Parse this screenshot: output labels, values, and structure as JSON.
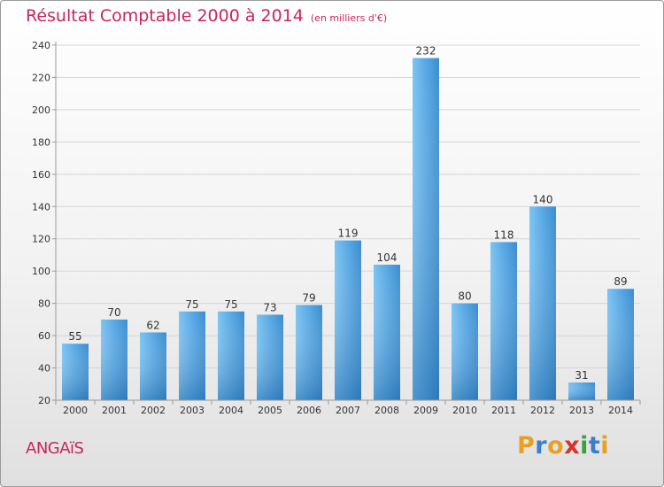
{
  "title": {
    "main": "Résultat Comptable 2000 à 2014",
    "sub": "(en milliers d'€)"
  },
  "commune": "ANGAïS",
  "logo": {
    "text": "Proxiti",
    "letters": [
      {
        "char": "P",
        "color": "#e8a020"
      },
      {
        "char": "r",
        "color": "#3a7fc8"
      },
      {
        "char": "o",
        "color": "#e8a020"
      },
      {
        "char": "x",
        "color": "#d8332a"
      },
      {
        "char": "i",
        "color": "#3aa040"
      },
      {
        "char": "t",
        "color": "#3a7fc8"
      },
      {
        "char": "i",
        "color": "#e8a020"
      }
    ]
  },
  "colors": {
    "title": "#c8245c",
    "bar_light": "#62b2ec",
    "bar_dark": "#2a7cbf",
    "grid": "#d6d6d6",
    "axis": "#9a9a9a"
  },
  "chart_data": {
    "type": "bar",
    "title": "Résultat Comptable 2000 à 2014",
    "subtitle": "(en milliers d'€)",
    "xlabel": "",
    "ylabel": "",
    "categories": [
      "2000",
      "2001",
      "2002",
      "2003",
      "2004",
      "2005",
      "2006",
      "2007",
      "2008",
      "2009",
      "2010",
      "2011",
      "2012",
      "2013",
      "2014"
    ],
    "values": [
      55,
      70,
      62,
      75,
      75,
      73,
      79,
      119,
      104,
      232,
      80,
      118,
      140,
      31,
      89
    ],
    "ylim": [
      20,
      240
    ],
    "yticks": [
      20,
      40,
      60,
      80,
      100,
      120,
      140,
      160,
      180,
      200,
      220,
      240
    ],
    "grid": true,
    "data_labels": true
  }
}
